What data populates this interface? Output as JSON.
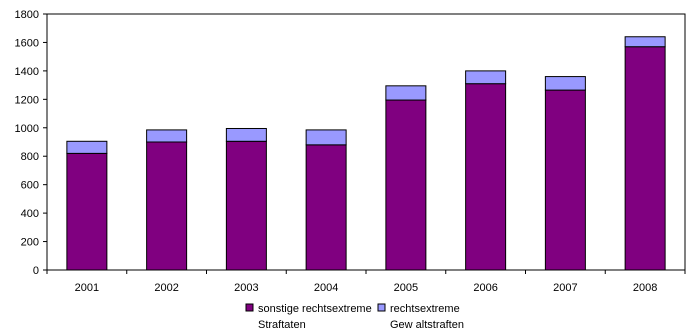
{
  "chart_data": {
    "type": "bar",
    "stacked": true,
    "categories": [
      "2001",
      "2002",
      "2003",
      "2004",
      "2005",
      "2006",
      "2007",
      "2008"
    ],
    "series": [
      {
        "name": "sonstige rechtsextreme Straftaten",
        "legend_lines": [
          "sonstige rechtsextreme",
          "Straftaten"
        ],
        "color": "#800080",
        "values": [
          820,
          900,
          905,
          880,
          1195,
          1310,
          1265,
          1570
        ]
      },
      {
        "name": "rechtsextreme Gewaltstraftaten",
        "legend_lines": [
          "rechtsextreme",
          "Gew altstraften"
        ],
        "color": "#9999FF",
        "values": [
          85,
          85,
          90,
          105,
          100,
          90,
          95,
          70
        ]
      }
    ],
    "ylim": [
      0,
      1800
    ],
    "yticks": [
      "0",
      "200",
      "400",
      "600",
      "800",
      "1000",
      "1200",
      "1400",
      "1600",
      "1800"
    ],
    "grid": false,
    "legend_position": "bottom"
  }
}
